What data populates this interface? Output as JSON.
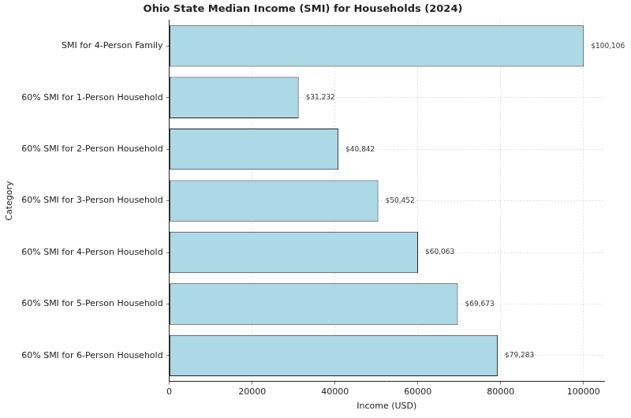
{
  "chart_data": {
    "type": "bar",
    "orientation": "horizontal",
    "title": "Ohio State Median Income (SMI) for Households (2024)",
    "xlabel": "Income (USD)",
    "ylabel": "Category",
    "categories": [
      "SMI for 4-Person Family",
      "60% SMI for 1-Person Household",
      "60% SMI for 2-Person Household",
      "60% SMI for 3-Person Household",
      "60% SMI for 4-Person Household",
      "60% SMI for 5-Person Household",
      "60% SMI for 6-Person Household"
    ],
    "values": [
      100106,
      31232,
      40842,
      50452,
      60063,
      69673,
      79283
    ],
    "value_labels": [
      "$100,106",
      "$31,232",
      "$40,842",
      "$50,452",
      "$60,063",
      "$69,673",
      "$79,283"
    ],
    "color": "#add8e6",
    "xlim": [
      0,
      105000
    ],
    "xticks": [
      0,
      20000,
      40000,
      60000,
      80000,
      100000
    ],
    "grid": true,
    "data_labels": true
  }
}
